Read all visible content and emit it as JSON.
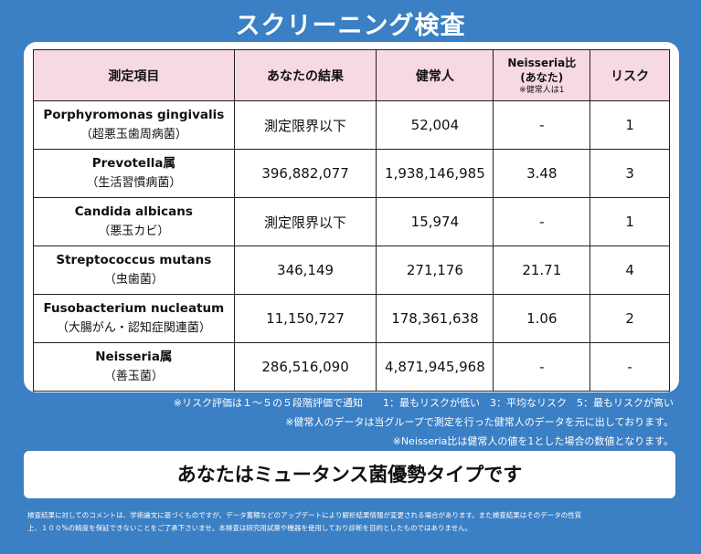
{
  "title": "スクリーニング検査",
  "table": {
    "headers": {
      "item": "測定項目",
      "result": "あなたの結果",
      "normal": "健常人",
      "ratio_line1": "Neisseria比",
      "ratio_line2": "(あなた)",
      "ratio_note": "※健常人は1",
      "risk": "リスク"
    },
    "rows": [
      {
        "name": "Porphyromonas gingivalis",
        "jp": "（超悪玉歯周病菌）",
        "result": "測定限界以下",
        "normal": "52,004",
        "ratio": "-",
        "risk": "1"
      },
      {
        "name": "Prevotella属",
        "jp": "（生活習慣病菌）",
        "result": "396,882,077",
        "normal": "1,938,146,985",
        "ratio": "3.48",
        "risk": "3"
      },
      {
        "name": "Candida albicans",
        "jp": "（悪玉カビ）",
        "result": "測定限界以下",
        "normal": "15,974",
        "ratio": "-",
        "risk": "1"
      },
      {
        "name": "Streptococcus mutans",
        "jp": "（虫歯菌）",
        "result": "346,149",
        "normal": "271,176",
        "ratio": "21.71",
        "risk": "4"
      },
      {
        "name": "Fusobacterium nucleatum",
        "jp": "（大腸がん・認知症関連菌）",
        "result": "11,150,727",
        "normal": "178,361,638",
        "ratio": "1.06",
        "risk": "2"
      },
      {
        "name": "Neisseria属",
        "jp": "（善玉菌）",
        "result": "286,516,090",
        "normal": "4,871,945,968",
        "ratio": "-",
        "risk": "-"
      }
    ]
  },
  "notes": [
    "※リスク評価は１～５の５段階評価で通知　　1：最もリスクが低い　3：平均なリスク　5：最もリスクが高い",
    "※健常人のデータは当グループで測定を行った健常人のデータを元に出しております。",
    "※Neisseria比は健常人の値を1とした場合の数値となります。"
  ],
  "result_message": "あなたはミュータンス菌優勢タイプです",
  "footer": [
    "検査結果に対してのコメントは、学術論文に基づくものですが、データ蓄積などのアップデートにより解析結果情報が変更される場合があります。また検査結果はそのデータの性質",
    "上、１００%の精度を保証できないことをご了承下さいませ。本検査は研究用試薬や機器を使用しており診断を目的としたものではありません。"
  ]
}
